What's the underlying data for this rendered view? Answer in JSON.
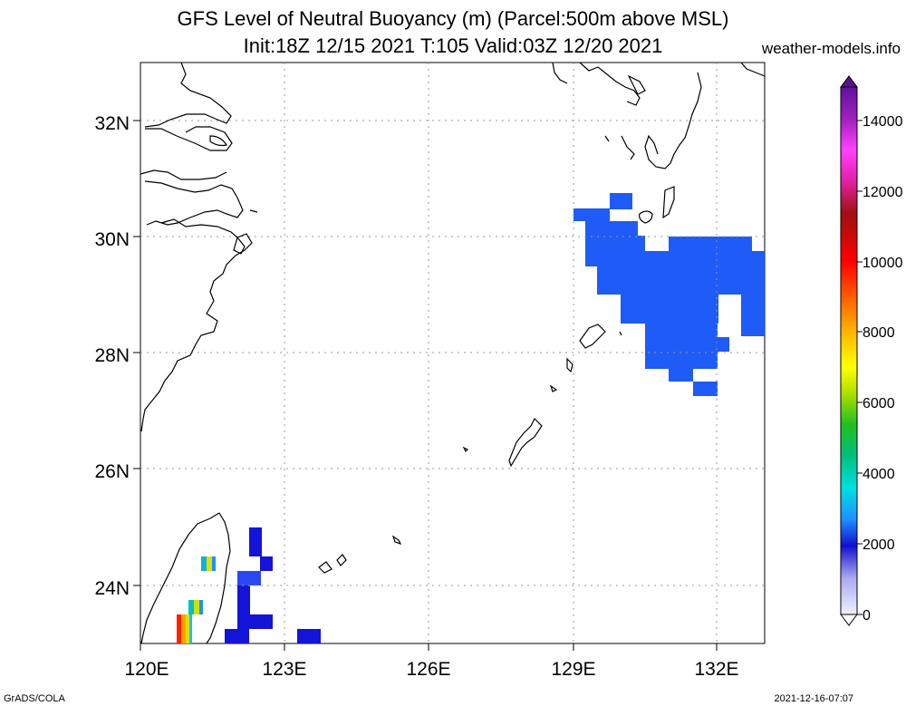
{
  "title_line1": "GFS Level of Neutral Buoyancy (m) (Parcel:500m above MSL)",
  "title_line2": "Init:18Z 12/15 2021 T:105 Valid:03Z 12/20 2021",
  "site": "weather-models.info",
  "footer_left": "GrADS/COLA",
  "footer_right": "2021-12-16-07:07",
  "map": {
    "lon_range": [
      120,
      133
    ],
    "lat_range": [
      23,
      33
    ],
    "lon_ticks": [
      "120E",
      "123E",
      "126E",
      "129E",
      "132E"
    ],
    "lat_ticks": [
      "24N",
      "26N",
      "28N",
      "30N",
      "32N"
    ],
    "grid": true,
    "colors": {
      "blue": "#1e5bf7",
      "deep_blue": "#1414d8",
      "coast": "#000000"
    }
  },
  "colorbar": {
    "labels": [
      "0",
      "2000",
      "4000",
      "6000",
      "8000",
      "10000",
      "12000",
      "14000"
    ],
    "min": 0,
    "max": 15000
  }
}
